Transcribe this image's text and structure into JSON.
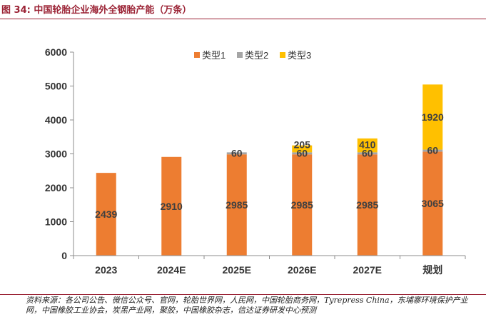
{
  "figure": {
    "title": "图 34:  中国轮胎企业海外全钢胎产能（万条）",
    "source_note": "资料来源：各公司公告、微信公众号、官网，轮胎世界网，人民网，中国轮胎商务网，Tyrepress China，东埔寨环境保护产业网，中国橡胶工业协会，炭黑产业网，聚胶，中国橡胶杂志，信达证券研发中心预测"
  },
  "chart_data": {
    "type": "bar",
    "stacked": true,
    "categories": [
      "2023",
      "2024E",
      "2025E",
      "2026E",
      "2027E",
      "规划"
    ],
    "series": [
      {
        "name": "类型1",
        "color": "#ed7d31",
        "values": [
          2439,
          2910,
          2985,
          2985,
          2985,
          3065
        ]
      },
      {
        "name": "类型2",
        "color": "#a5a5a5",
        "values": [
          0,
          0,
          60,
          60,
          60,
          60
        ]
      },
      {
        "name": "类型3",
        "color": "#ffc000",
        "values": [
          0,
          0,
          0,
          205,
          410,
          1920
        ]
      }
    ],
    "ylim": [
      0,
      6000
    ],
    "yticks": [
      "0",
      "1000",
      "2000",
      "3000",
      "4000",
      "5000",
      "6000"
    ],
    "grid": false,
    "legend": "top-center"
  }
}
